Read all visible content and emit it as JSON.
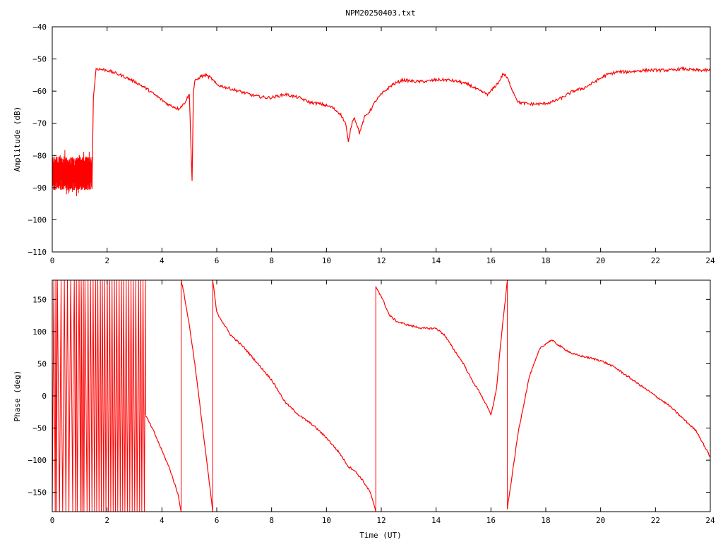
{
  "colors": {
    "series": "#ff0000",
    "axis": "#000000",
    "background": "#ffffff"
  },
  "chart_data": [
    {
      "type": "line",
      "title": "NPM20250403.txt",
      "xlabel": "",
      "ylabel": "Amplitude (dB)",
      "xlim": [
        0,
        24
      ],
      "ylim": [
        -110,
        -40
      ],
      "xticks": [
        0,
        2,
        4,
        6,
        8,
        10,
        12,
        14,
        16,
        18,
        20,
        22,
        24
      ],
      "yticks": [
        -110,
        -100,
        -90,
        -80,
        -70,
        -60,
        -50,
        -40
      ],
      "grid": false,
      "noisy_band": {
        "x": [
          0.0,
          1.45
        ],
        "low": -93,
        "high": -78
      },
      "x": [
        1.45,
        1.5,
        1.6,
        2.0,
        2.5,
        3.0,
        3.4,
        3.8,
        4.2,
        4.6,
        4.8,
        5.0,
        5.1,
        5.15,
        5.2,
        5.4,
        5.6,
        5.8,
        6.0,
        6.2,
        6.6,
        7.0,
        7.4,
        7.8,
        8.0,
        8.5,
        9.0,
        9.4,
        9.8,
        10.2,
        10.5,
        10.7,
        10.8,
        10.9,
        11.0,
        11.1,
        11.2,
        11.4,
        11.6,
        11.8,
        12.0,
        12.4,
        12.8,
        13.2,
        13.6,
        14.0,
        14.4,
        14.8,
        15.2,
        15.6,
        15.9,
        16.1,
        16.3,
        16.45,
        16.6,
        16.8,
        17.0,
        17.4,
        17.8,
        18.2,
        18.6,
        19.0,
        19.4,
        19.8,
        20.2,
        20.6,
        21.0,
        21.6,
        22.0,
        22.6,
        23.0,
        23.4,
        23.8,
        24.0
      ],
      "y": [
        -90,
        -62,
        -53,
        -53.5,
        -55,
        -57,
        -59,
        -61.5,
        -64,
        -65.5,
        -64,
        -61,
        -88,
        -60,
        -57,
        -55.5,
        -55,
        -56,
        -58,
        -58.5,
        -59.5,
        -60.5,
        -61.5,
        -62,
        -62,
        -61,
        -62,
        -63.5,
        -64,
        -65,
        -67,
        -70,
        -76,
        -71,
        -68,
        -70,
        -73,
        -68,
        -66,
        -63,
        -61,
        -58,
        -56.5,
        -57,
        -57,
        -56.5,
        -56.5,
        -57,
        -58,
        -60,
        -61,
        -59,
        -57,
        -54.5,
        -56,
        -60,
        -63.5,
        -64,
        -64,
        -63.5,
        -62,
        -60,
        -59,
        -57,
        -55,
        -54,
        -54,
        -53.5,
        -53.5,
        -53.5,
        -53,
        -53.5,
        -53.5,
        -53.5
      ]
    },
    {
      "type": "line",
      "title": "",
      "xlabel": "Time (UT)",
      "ylabel": "Phase (deg)",
      "xlim": [
        0,
        24
      ],
      "ylim": [
        -180,
        180
      ],
      "xticks": [
        0,
        2,
        4,
        6,
        8,
        10,
        12,
        14,
        16,
        18,
        20,
        22,
        24
      ],
      "yticks": [
        -150,
        -100,
        -50,
        0,
        50,
        100,
        150
      ],
      "grid": false,
      "wrapped": true,
      "wrapping_band": {
        "x": [
          0.0,
          3.4
        ]
      },
      "segments": [
        {
          "x": [
            3.4,
            3.7,
            4.0,
            4.3,
            4.6,
            4.7
          ],
          "y": [
            -30,
            -55,
            -85,
            -115,
            -155,
            -180
          ]
        },
        {
          "x": [
            4.7,
            4.8,
            5.0,
            5.2,
            5.4,
            5.6,
            5.8,
            5.85
          ],
          "y": [
            180,
            160,
            110,
            50,
            -20,
            -90,
            -160,
            -180
          ]
        },
        {
          "x": [
            5.85,
            6.0,
            6.5,
            7.0,
            7.5,
            8.0,
            8.5,
            9.0,
            9.5,
            10.0,
            10.5,
            10.8,
            11.0,
            11.3,
            11.6,
            11.8
          ],
          "y": [
            180,
            130,
            95,
            75,
            50,
            25,
            -10,
            -30,
            -45,
            -65,
            -90,
            -110,
            -115,
            -130,
            -150,
            -180
          ]
        },
        {
          "x": [
            11.8,
            12.0,
            12.3,
            12.6,
            13.0,
            13.5,
            14.0,
            14.3,
            14.6,
            15.0,
            15.3,
            15.6,
            15.9,
            16.0
          ],
          "y": [
            170,
            155,
            125,
            115,
            110,
            105,
            105,
            95,
            75,
            50,
            25,
            5,
            -20,
            -30
          ]
        },
        {
          "x": [
            16.0,
            16.2,
            16.35,
            16.5,
            16.6
          ],
          "y": [
            -30,
            10,
            80,
            140,
            180
          ]
        },
        {
          "x": [
            16.6,
            16.8,
            17.0,
            17.4,
            17.8,
            18.2,
            18.6,
            19.0,
            19.5,
            20.0,
            20.5,
            21.0,
            21.5,
            22.0,
            22.5,
            23.0,
            23.5,
            24.0
          ],
          "y": [
            -175,
            -115,
            -55,
            30,
            75,
            87,
            75,
            65,
            60,
            55,
            45,
            30,
            15,
            0,
            -15,
            -35,
            -55,
            -95
          ]
        }
      ]
    }
  ]
}
